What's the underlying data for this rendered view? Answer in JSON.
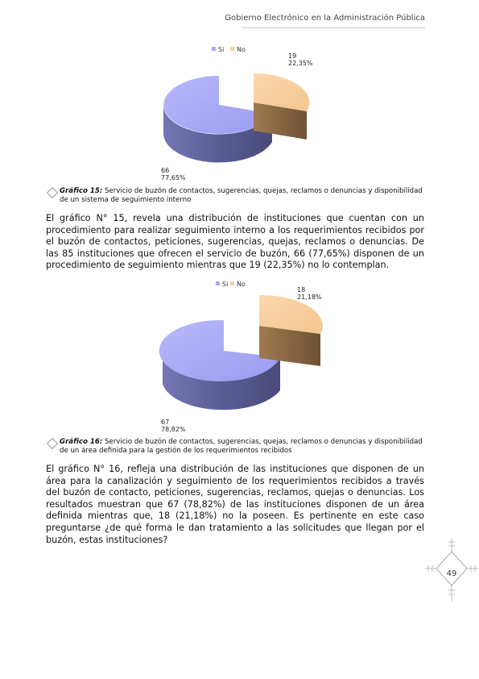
{
  "header": {
    "title": "Gobierno Electrónico en la Administración Pública"
  },
  "charts": [
    {
      "legend": [
        "Si",
        "No"
      ],
      "label_si_value": "66",
      "label_si_percent": "77,65%",
      "label_no_value": "19",
      "label_no_percent": "22,35%",
      "caption_label": "Gráfico 15:",
      "caption_text": " Servicio de buzón de contactos, sugerencias, quejas, reclamos o denuncias y disponibilidad de un sistema de seguimiento interno"
    },
    {
      "legend": [
        "Si",
        "No"
      ],
      "label_si_value": "67",
      "label_si_percent": "78,82%",
      "label_no_value": "18",
      "label_no_percent": "21,18%",
      "caption_label": "Gráfico 16:",
      "caption_text": " Servicio de buzón de contactos, sugerencias, quejas, reclamos o denuncias y disponibilidad de un área definida para la gestión de los requerimientos recibidos"
    }
  ],
  "chart_data": [
    {
      "type": "pie",
      "categories": [
        "Si",
        "No"
      ],
      "values": [
        66,
        19
      ],
      "percentages": [
        77.65,
        22.35
      ],
      "colors": [
        "#a9aaf6",
        "#f9cf9f"
      ],
      "legend": "top"
    },
    {
      "type": "pie",
      "categories": [
        "Si",
        "No"
      ],
      "values": [
        67,
        18
      ],
      "percentages": [
        78.82,
        21.18
      ],
      "colors": [
        "#a9aaf6",
        "#f9cf9f"
      ],
      "legend": "top"
    }
  ],
  "paragraphs": [
    "El gráfico N° 15, revela una distribución de instituciones que cuentan con un procedimiento para realizar seguimiento interno a los requerimientos recibidos por el buzón de contactos, peticiones, sugerencias, quejas, reclamos o denuncias. De las 85 instituciones que ofrecen el servicio de buzón, 66 (77,65%) disponen de un procedimiento de seguimiento mientras que 19 (22,35%) no lo contemplan.",
    "El gráfico N° 16, refleja una distribución de las instituciones que disponen de un área para la canalización y seguimiento de los requerimientos recibidos a través del buzón de contacto, peticiones, sugerencias, reclamos, quejas o denuncias. Los resultados muestran que 67 (78,82%) de las instituciones disponen de un área definida mientras que, 18 (21,18%) no la poseen. Es pertinente en este caso preguntarse ¿de qué forma le dan tratamiento a las solicitudes que llegan por el buzón, estas instituciones?"
  ],
  "page": {
    "number": "49"
  }
}
